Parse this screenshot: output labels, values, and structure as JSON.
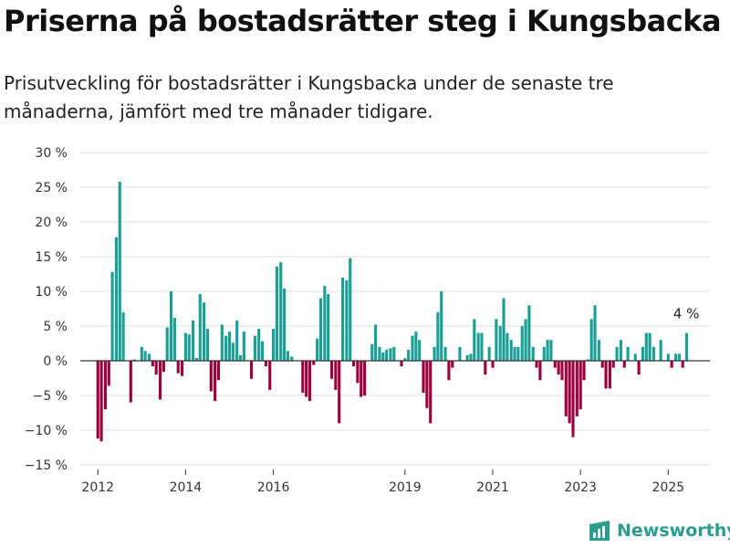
{
  "header": {
    "title": "Priserna på bostadsrätter steg i Kungsbacka",
    "subtitle": "Prisutveckling för bostadsrätter i Kungsbacka under de senaste tre månaderna, jämfört med tre månader tidigare."
  },
  "brand": {
    "name": "Newsworthy"
  },
  "colors": {
    "positive": "#1a9e96",
    "negative": "#99003d",
    "grid": "#dddddd",
    "axis": "#333333"
  },
  "chart_data": {
    "type": "bar",
    "ylim": [
      -15,
      30
    ],
    "yticks": [
      30,
      25,
      20,
      15,
      10,
      5,
      0,
      -5,
      -10,
      -15
    ],
    "ytick_labels": [
      "30 %",
      "25 %",
      "20 %",
      "15 %",
      "10 %",
      "5 %",
      "0 %",
      "−5 %",
      "−10 %",
      "−15 %"
    ],
    "xlim": [
      2011.6,
      2025.95
    ],
    "xticks": [
      2012,
      2014,
      2016,
      2019,
      2021,
      2023,
      2025
    ],
    "xtick_labels": [
      "2012",
      "2014",
      "2016",
      "2019",
      "2021",
      "2023",
      "2025"
    ],
    "annotation": {
      "text": "4 %",
      "x": 2025.39,
      "y": 4
    },
    "grid": true,
    "x": [
      2012.0,
      2012.08,
      2012.17,
      2012.25,
      2012.33,
      2012.42,
      2012.5,
      2012.58,
      2012.67,
      2012.75,
      2012.83,
      2012.92,
      2013.0,
      2013.08,
      2013.17,
      2013.25,
      2013.33,
      2013.42,
      2013.5,
      2013.58,
      2013.67,
      2013.75,
      2013.83,
      2013.92,
      2014.0,
      2014.08,
      2014.17,
      2014.25,
      2014.33,
      2014.42,
      2014.5,
      2014.58,
      2014.67,
      2014.75,
      2014.83,
      2014.92,
      2015.0,
      2015.08,
      2015.17,
      2015.25,
      2015.33,
      2015.42,
      2015.5,
      2015.58,
      2015.67,
      2015.75,
      2015.83,
      2015.92,
      2016.0,
      2016.08,
      2016.17,
      2016.25,
      2016.33,
      2016.42,
      2016.5,
      2016.58,
      2016.67,
      2016.75,
      2016.83,
      2016.92,
      2017.0,
      2017.08,
      2017.17,
      2017.25,
      2017.33,
      2017.42,
      2017.5,
      2017.58,
      2017.67,
      2017.75,
      2017.83,
      2017.92,
      2018.0,
      2018.08,
      2018.17,
      2018.25,
      2018.33,
      2018.42,
      2018.5,
      2018.58,
      2018.67,
      2018.75,
      2018.83,
      2018.92,
      2019.0,
      2019.08,
      2019.17,
      2019.25,
      2019.33,
      2019.42,
      2019.5,
      2019.58,
      2019.67,
      2019.75,
      2019.83,
      2019.92,
      2020.0,
      2020.08,
      2020.17,
      2020.25,
      2020.33,
      2020.42,
      2020.5,
      2020.58,
      2020.67,
      2020.75,
      2020.83,
      2020.92,
      2021.0,
      2021.08,
      2021.17,
      2021.25,
      2021.33,
      2021.42,
      2021.5,
      2021.58,
      2021.67,
      2021.75,
      2021.83,
      2021.92,
      2022.0,
      2022.08,
      2022.17,
      2022.25,
      2022.33,
      2022.42,
      2022.5,
      2022.58,
      2022.67,
      2022.75,
      2022.83,
      2022.92,
      2023.0,
      2023.08,
      2023.17,
      2023.25,
      2023.33,
      2023.42,
      2023.5,
      2023.58,
      2023.67,
      2023.75,
      2023.83,
      2023.92,
      2024.0,
      2024.08,
      2024.17,
      2024.25,
      2024.33,
      2024.42,
      2024.5,
      2024.58,
      2024.67,
      2024.75,
      2024.83,
      2024.92,
      2025.0,
      2025.08,
      2025.17,
      2025.25,
      2025.33,
      2025.42
    ],
    "values": [
      -11.2,
      -11.6,
      -7.0,
      -3.6,
      12.8,
      17.8,
      25.8,
      7.0,
      0,
      -6.0,
      0.2,
      0,
      2.0,
      1.4,
      1.0,
      -0.8,
      -2.0,
      -5.6,
      -1.6,
      4.8,
      10.0,
      6.2,
      -1.8,
      -2.2,
      4.0,
      3.8,
      5.8,
      0.4,
      9.6,
      8.4,
      4.6,
      -4.4,
      -5.8,
      -2.8,
      5.2,
      3.6,
      4.2,
      2.6,
      5.8,
      0.8,
      4.2,
      0,
      -2.6,
      3.6,
      4.6,
      2.8,
      -0.8,
      -4.2,
      4.6,
      13.6,
      14.2,
      10.4,
      1.4,
      0.6,
      0,
      0,
      -4.6,
      -5.2,
      -5.8,
      -0.6,
      3.2,
      9.0,
      10.8,
      9.6,
      -2.6,
      -4.2,
      -9.0,
      12.0,
      11.6,
      14.8,
      -0.8,
      -3.2,
      -5.2,
      -5.0,
      0,
      2.4,
      5.2,
      2.0,
      1.2,
      1.6,
      1.8,
      2.0,
      0,
      -0.8,
      0.4,
      1.6,
      3.6,
      4.2,
      3.0,
      -4.6,
      -6.8,
      -9.0,
      2.0,
      7.0,
      10.0,
      2.0,
      -2.8,
      -1.0,
      0,
      2.0,
      0,
      0.8,
      1.0,
      6.0,
      4.0,
      4.0,
      -2.0,
      2.0,
      -1.0,
      6.0,
      5.0,
      9.0,
      4.0,
      3.0,
      2.0,
      2.0,
      5.0,
      6.0,
      8.0,
      2.0,
      -1.0,
      -2.8,
      2.0,
      3.0,
      3.0,
      -1.0,
      -2.0,
      -2.8,
      -8.0,
      -9.0,
      -11.0,
      -8.0,
      -7.0,
      -2.8,
      0.2,
      6.0,
      8.0,
      3.0,
      -1.0,
      -4.0,
      -4.0,
      -1.0,
      2.0,
      3.0,
      -1.0,
      2.0,
      0,
      1.0,
      -2.0,
      2.0,
      4.0,
      4.0,
      2.0,
      0,
      3.0,
      0,
      1.0,
      -1.0,
      1.0,
      1.0,
      -1.0,
      4.0
    ]
  }
}
